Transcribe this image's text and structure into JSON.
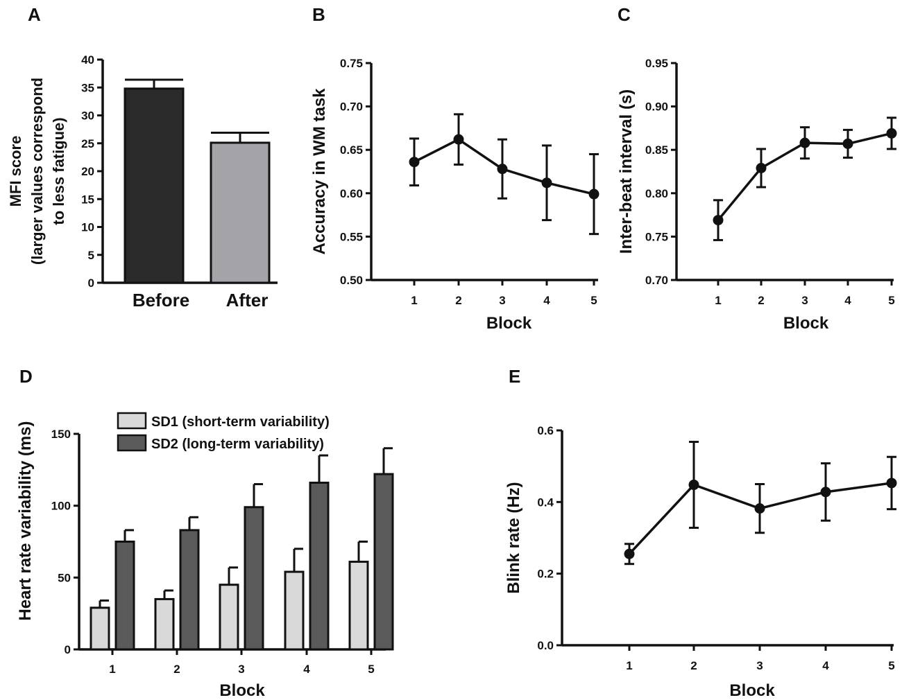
{
  "colors": {
    "bar_before": "#2b2b2b",
    "bar_after": "#a3a3a8",
    "sd1": "#d9d9d9",
    "sd2": "#5a5a5a",
    "line": "#111111"
  },
  "chart_data": [
    {
      "panel": "A",
      "type": "bar",
      "ylabel_lines": [
        "MFI score",
        "(larger values correspond",
        "to less fatigue)"
      ],
      "ylim": [
        0,
        40
      ],
      "yticks": [
        0,
        5,
        10,
        15,
        20,
        25,
        30,
        35,
        40
      ],
      "categories": [
        "Before",
        "After"
      ],
      "values": [
        34.8,
        25.1
      ],
      "errors": [
        1.6,
        1.8
      ]
    },
    {
      "panel": "B",
      "type": "line",
      "xlabel": "Block",
      "ylabel": "Accuracy in WM task",
      "ylim": [
        0.5,
        0.75
      ],
      "yticks": [
        "0.50",
        "0.55",
        "0.60",
        "0.65",
        "0.70",
        "0.75"
      ],
      "x": [
        1,
        2,
        3,
        4,
        5
      ],
      "y": [
        0.636,
        0.662,
        0.628,
        0.612,
        0.599
      ],
      "errors": [
        0.027,
        0.029,
        0.034,
        0.043,
        0.046
      ]
    },
    {
      "panel": "C",
      "type": "line",
      "xlabel": "Block",
      "ylabel": "Inter-beat interval (s)",
      "ylim": [
        0.7,
        0.95
      ],
      "yticks": [
        "0.70",
        "0.75",
        "0.80",
        "0.85",
        "0.90",
        "0.95"
      ],
      "x": [
        1,
        2,
        3,
        4,
        5
      ],
      "y": [
        0.769,
        0.829,
        0.858,
        0.857,
        0.869
      ],
      "errors": [
        0.023,
        0.022,
        0.018,
        0.016,
        0.018
      ]
    },
    {
      "panel": "D",
      "type": "bar",
      "xlabel": "Block",
      "ylabel": "Heart rate variability (ms)",
      "ylim": [
        0,
        150
      ],
      "yticks": [
        0,
        50,
        100,
        150
      ],
      "categories": [
        "1",
        "2",
        "3",
        "4",
        "5"
      ],
      "series": [
        {
          "name": "SD1 (short-term variability)",
          "values": [
            29,
            35,
            45,
            54,
            61
          ],
          "errors": [
            5,
            6,
            12,
            16,
            14
          ]
        },
        {
          "name": "SD2 (long-term variability)",
          "values": [
            75,
            83,
            99,
            116,
            122
          ],
          "errors": [
            8,
            9,
            16,
            19,
            18
          ]
        }
      ]
    },
    {
      "panel": "E",
      "type": "line",
      "xlabel": "Block",
      "ylabel": "Blink rate (Hz)",
      "ylim": [
        0.0,
        0.6
      ],
      "yticks": [
        "0.0",
        "0.2",
        "0.4",
        "0.6"
      ],
      "x": [
        1,
        2,
        3,
        4,
        5
      ],
      "y": [
        0.255,
        0.448,
        0.382,
        0.428,
        0.453
      ],
      "errors": [
        0.028,
        0.12,
        0.068,
        0.08,
        0.073
      ]
    }
  ]
}
